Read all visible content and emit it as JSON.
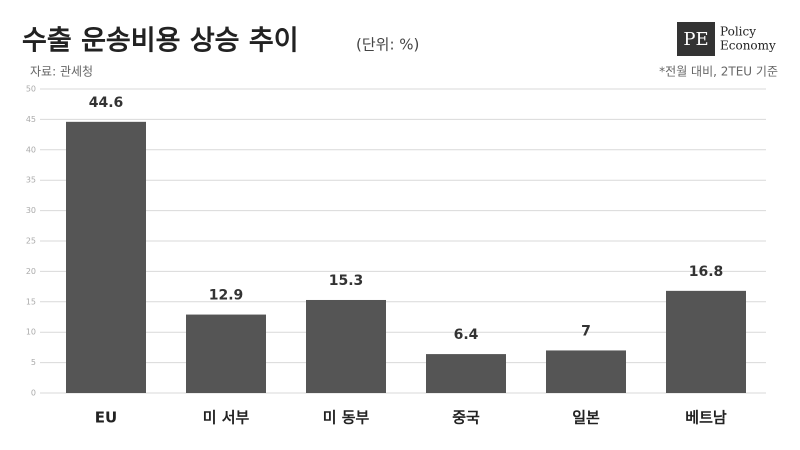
{
  "chart_data": {
    "type": "bar",
    "title": "수출 운송비용 상승 추이",
    "unit": "(단위: %)",
    "source": "자료: 관세청",
    "note": "*전월 대비, 2TEU 기준",
    "categories": [
      "EU",
      "미 서부",
      "미 동부",
      "중국",
      "일본",
      "베트남"
    ],
    "values": [
      44.6,
      12.9,
      15.3,
      6.4,
      7,
      16.8
    ],
    "color": "#555555",
    "ylim": [
      0,
      50
    ],
    "yticks": [
      0,
      5,
      10,
      15,
      20,
      25,
      30,
      35,
      40,
      45,
      50
    ],
    "grid": true
  },
  "brand": {
    "mark": "PE",
    "line1": "Policy",
    "line2": "Economy"
  }
}
